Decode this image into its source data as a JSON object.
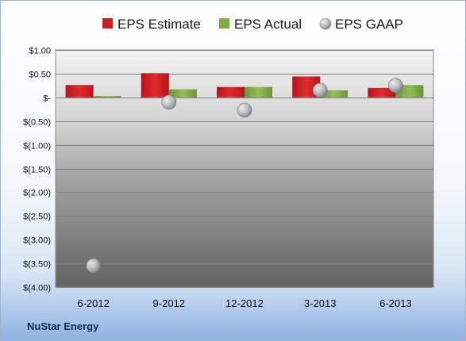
{
  "company": "NuStar Energy",
  "colors": {
    "estimate": "#cc1f24",
    "actual": "#7fac45",
    "gaap": "#b8bcc2"
  },
  "chart_data": {
    "type": "bar",
    "categories": [
      "6-2012",
      "9-2012",
      "12-2012",
      "3-2013",
      "6-2013"
    ],
    "series": [
      {
        "name": "EPS Estimate",
        "kind": "bar",
        "values": [
          0.26,
          0.51,
          0.22,
          0.44,
          0.2
        ]
      },
      {
        "name": "EPS Actual",
        "kind": "bar",
        "values": [
          0.03,
          0.17,
          0.22,
          0.15,
          0.26
        ]
      },
      {
        "name": "EPS GAAP",
        "kind": "marker",
        "values": [
          -3.55,
          -0.1,
          -0.27,
          0.15,
          0.25
        ]
      }
    ],
    "ylim": [
      -4.0,
      1.0
    ],
    "yticks": [
      1.0,
      0.5,
      0,
      -0.5,
      -1.0,
      -1.5,
      -2.0,
      -2.5,
      -3.0,
      -3.5,
      -4.0
    ],
    "ytick_labels": [
      "$1.00",
      "$0.50",
      "$-",
      "$(0.50)",
      "$(1.00)",
      "$(1.50)",
      "$(2.00)",
      "$(2.50)",
      "$(3.00)",
      "$(3.50)",
      "$(4.00)"
    ],
    "legend_position": "top",
    "grid": true
  }
}
